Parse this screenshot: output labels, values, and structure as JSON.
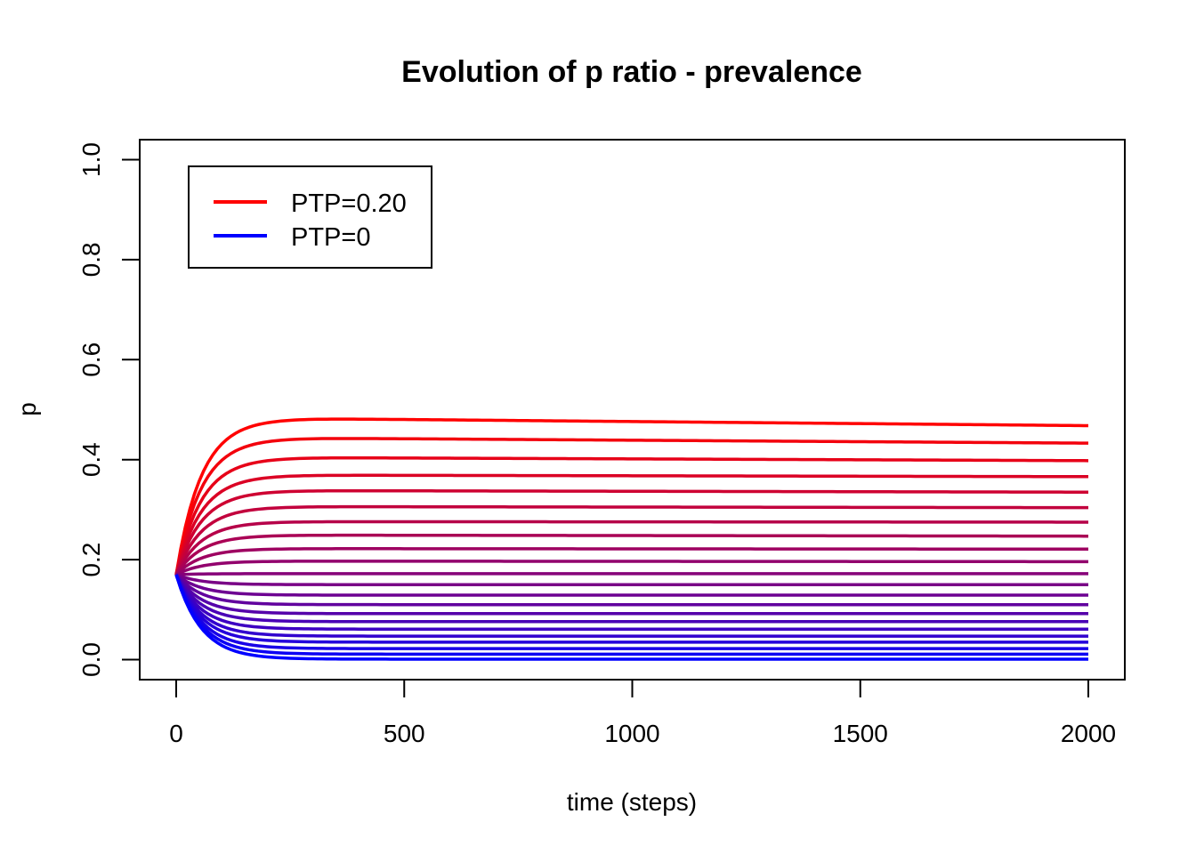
{
  "chart_data": {
    "type": "line",
    "title": "Evolution of p ratio - prevalence",
    "xlabel": "time (steps)",
    "ylabel": "p",
    "xlim": [
      -80,
      2080
    ],
    "ylim": [
      -0.04,
      1.04
    ],
    "x_ticks": [
      0,
      500,
      1000,
      1500,
      2000
    ],
    "y_ticks": [
      0.0,
      0.2,
      0.4,
      0.6,
      0.8,
      1.0
    ],
    "x_tick_labels": [
      "0",
      "500",
      "1000",
      "1500",
      "2000"
    ],
    "y_tick_labels": [
      "0.0",
      "0.2",
      "0.4",
      "0.6",
      "0.8",
      "1.0"
    ],
    "grid": false,
    "legend_position": "top-left",
    "legend": [
      {
        "label": "PTP=0.20",
        "color": "#ff0000"
      },
      {
        "label": "PTP=0",
        "color": "#0000ff"
      }
    ],
    "color_start": "#ff0000",
    "color_end": "#0000ff",
    "initial_p": 0.17,
    "x_range": [
      0,
      2000
    ],
    "series": [
      {
        "plateau": 0.482,
        "final": 0.468
      },
      {
        "plateau": 0.443,
        "final": 0.433
      },
      {
        "plateau": 0.404,
        "final": 0.398
      },
      {
        "plateau": 0.369,
        "final": 0.366
      },
      {
        "plateau": 0.338,
        "final": 0.335
      },
      {
        "plateau": 0.306,
        "final": 0.304
      },
      {
        "plateau": 0.276,
        "final": 0.275
      },
      {
        "plateau": 0.249,
        "final": 0.247
      },
      {
        "plateau": 0.222,
        "final": 0.221
      },
      {
        "plateau": 0.197,
        "final": 0.196
      },
      {
        "plateau": 0.172,
        "final": 0.172
      },
      {
        "plateau": 0.15,
        "final": 0.15
      },
      {
        "plateau": 0.129,
        "final": 0.129
      },
      {
        "plateau": 0.11,
        "final": 0.11
      },
      {
        "plateau": 0.092,
        "final": 0.092
      },
      {
        "plateau": 0.076,
        "final": 0.076
      },
      {
        "plateau": 0.061,
        "final": 0.061
      },
      {
        "plateau": 0.047,
        "final": 0.047
      },
      {
        "plateau": 0.035,
        "final": 0.035
      },
      {
        "plateau": 0.022,
        "final": 0.022
      },
      {
        "plateau": 0.011,
        "final": 0.011
      },
      {
        "plateau": 0.001,
        "final": 0.001
      }
    ]
  }
}
